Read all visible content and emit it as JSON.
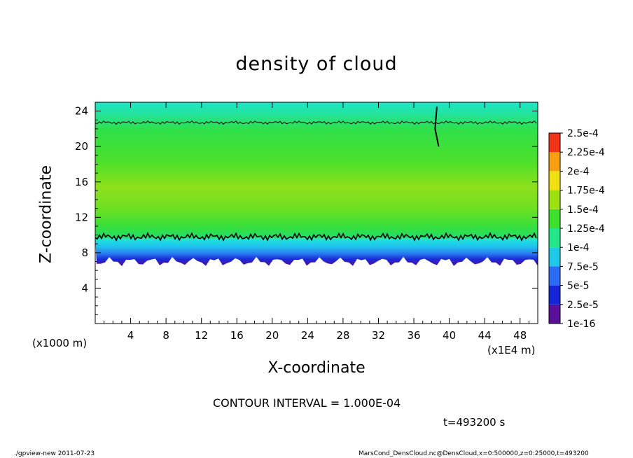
{
  "chart_data": {
    "type": "heatmap",
    "title": "density of cloud",
    "xlabel": "X-coordinate",
    "ylabel": "Z-coordinate",
    "x_unit_note": "(x1000 m)",
    "x_unit_note2": "(x1E4 m)",
    "xlim": [
      0,
      50
    ],
    "ylim": [
      0,
      25
    ],
    "xticks": [
      "4",
      "8",
      "12",
      "16",
      "20",
      "24",
      "28",
      "32",
      "36",
      "40",
      "44",
      "48"
    ],
    "yticks": [
      "4",
      "8",
      "12",
      "16",
      "20",
      "24"
    ],
    "colorbar": {
      "levels": [
        "1e-16",
        "2.5e-5",
        "5e-5",
        "7.5e-5",
        "1e-4",
        "1.25e-4",
        "1.5e-4",
        "1.75e-4",
        "2e-4",
        "2.25e-4",
        "2.5e-4"
      ],
      "colors": [
        "#5a0f9a",
        "#1526d8",
        "#2c6cf4",
        "#1ec8e8",
        "#22e88a",
        "#3ee02e",
        "#9ce010",
        "#f0e010",
        "#f8a010",
        "#f43418",
        "#f0a0a8"
      ]
    },
    "contour_interval": "CONTOUR INTERVAL = 1.000E-04",
    "time": "t=493200 s",
    "layers": [
      {
        "z_bottom": 7.0,
        "z_top": 8.2,
        "value_range": "1e-16 to 2.5e-5",
        "description": "lowest purple/blue layer"
      },
      {
        "z_bottom": 8.2,
        "z_top": 9.6,
        "value_range": "2.5e-5 to 1e-4"
      },
      {
        "z_bottom": 9.6,
        "z_top": 22.7,
        "value_range": "1e-4 to 1.5e-4"
      },
      {
        "z_bottom": 22.7,
        "z_top": 25.0,
        "value_range": "7.5e-5 to 1e-4"
      }
    ],
    "contour_lines_z": [
      9.8,
      22.7
    ]
  },
  "footer": {
    "left": "./gpview-new   2011-07-23",
    "right": "MarsCond_DensCloud.nc@DensCloud,x=0:500000,z=0:25000,t=493200"
  }
}
